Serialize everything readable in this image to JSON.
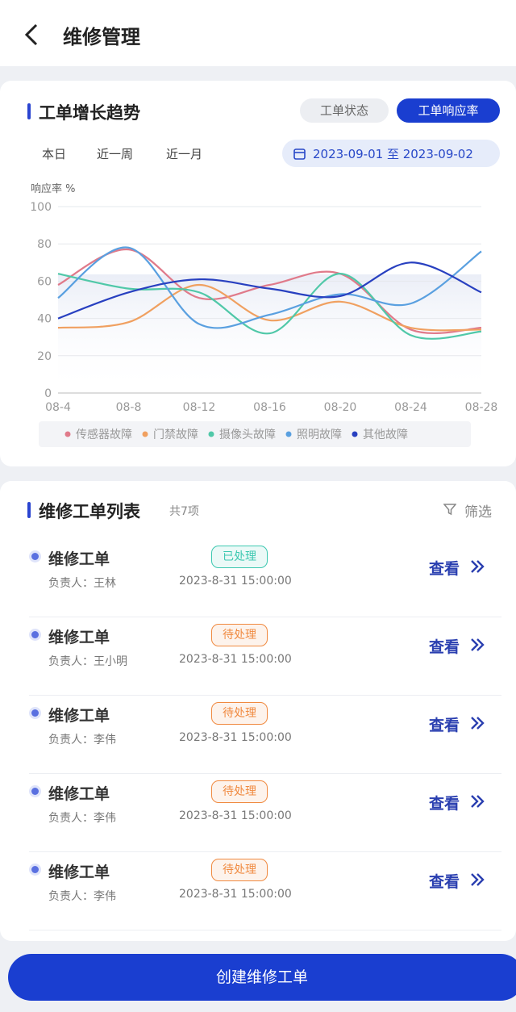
{
  "header": {
    "title": "维修管理"
  },
  "trend": {
    "title": "工单增长趋势",
    "tabs": [
      "工单状态",
      "工单响应率"
    ],
    "ranges": [
      "本日",
      "近一周",
      "近一月"
    ],
    "date_range": "2023-09-01 至 2023-09-02"
  },
  "chart_data": {
    "type": "line",
    "y_label": "响应率 %",
    "categories": [
      "08-4",
      "08-8",
      "08-12",
      "08-16",
      "08-20",
      "08-24",
      "08-28"
    ],
    "ylim": [
      0,
      100
    ],
    "yticks": [
      0,
      20,
      40,
      60,
      80,
      100
    ],
    "grid": true,
    "legend": "bottom",
    "series": [
      {
        "name": "传感器故障",
        "color": "#e07a8a",
        "values": [
          58,
          77,
          51,
          58,
          64,
          34,
          35
        ]
      },
      {
        "name": "门禁故障",
        "color": "#f0a060",
        "values": [
          35,
          38,
          58,
          39,
          49,
          35,
          34
        ]
      },
      {
        "name": "摄像头故障",
        "color": "#50c8a8",
        "values": [
          64,
          56,
          54,
          32,
          64,
          31,
          33
        ]
      },
      {
        "name": "照明故障",
        "color": "#5aa0e0",
        "values": [
          51,
          78,
          37,
          42,
          53,
          48,
          76
        ]
      },
      {
        "name": "其他故障",
        "color": "#2840c0",
        "values": [
          40,
          54,
          61,
          56,
          52,
          70,
          54
        ]
      }
    ]
  },
  "list": {
    "title": "维修工单列表",
    "count": "共7项",
    "filter": "筛选",
    "items": [
      {
        "title": "维修工单",
        "owner": "负责人：王林",
        "status": "已处理",
        "color": "#3cc8b0",
        "time": "2023-8-31 15:00:00",
        "action": "查看"
      },
      {
        "title": "维修工单",
        "owner": "负责人：王小明",
        "status": "待处理",
        "color": "#f08a40",
        "time": "2023-8-31 15:00:00",
        "action": "查看"
      },
      {
        "title": "维修工单",
        "owner": "负责人：李伟",
        "status": "待处理",
        "color": "#f08a40",
        "time": "2023-8-31 15:00:00",
        "action": "查看"
      },
      {
        "title": "维修工单",
        "owner": "负责人：李伟",
        "status": "待处理",
        "color": "#f08a40",
        "time": "2023-8-31 15:00:00",
        "action": "查看"
      },
      {
        "title": "维修工单",
        "owner": "负责人：李伟",
        "status": "待处理",
        "color": "#f08a40",
        "time": "2023-8-31 15:00:00",
        "action": "查看"
      }
    ]
  },
  "button": {
    "label": "创建维修工单"
  }
}
